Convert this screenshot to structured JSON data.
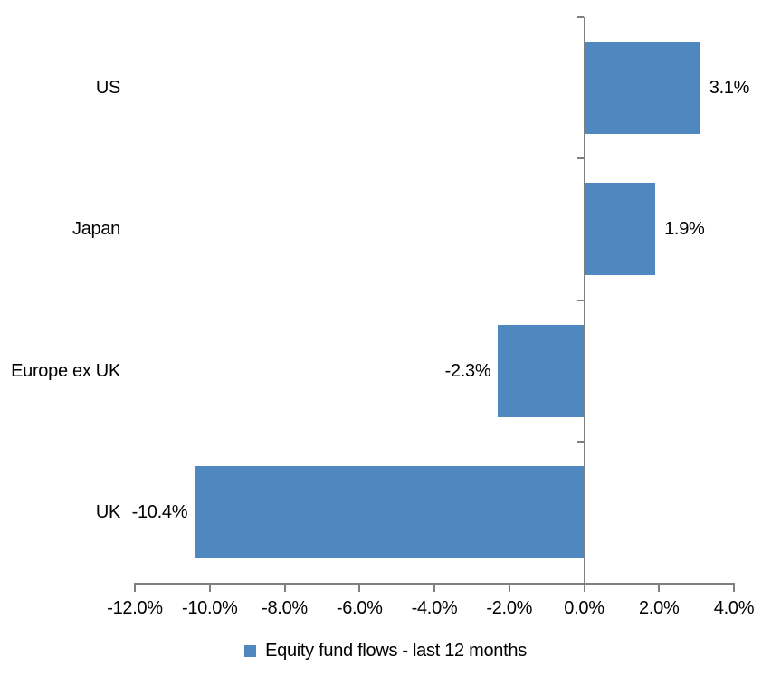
{
  "chart_data": {
    "type": "bar",
    "orientation": "horizontal",
    "title": "",
    "categories": [
      "US",
      "Japan",
      "Europe ex UK",
      "UK"
    ],
    "series": [
      {
        "name": "Equity fund flows - last 12 months",
        "values": [
          3.1,
          1.9,
          -2.3,
          -10.4
        ],
        "data_labels": [
          "3.1%",
          "1.9%",
          "-2.3%",
          "-10.4%"
        ]
      }
    ],
    "xlim": [
      -12,
      4
    ],
    "x_tick_step": 2,
    "x_tick_values": [
      -12,
      -10,
      -8,
      -6,
      -4,
      -2,
      0,
      2,
      4
    ],
    "x_tick_labels": [
      "-12.0%",
      "-10.0%",
      "-8.0%",
      "-6.0%",
      "-4.0%",
      "-2.0%",
      "0.0%",
      "2.0%",
      "4.0%"
    ],
    "grid": false,
    "colors": {
      "bar": "#4E88BE",
      "axis": "#7F7F7F",
      "text": "#000000",
      "background": "#FFFFFF"
    },
    "legend": {
      "position": "bottom",
      "label": "Equity fund flows - last 12 months",
      "swatch_color": "#4E88BE"
    }
  }
}
